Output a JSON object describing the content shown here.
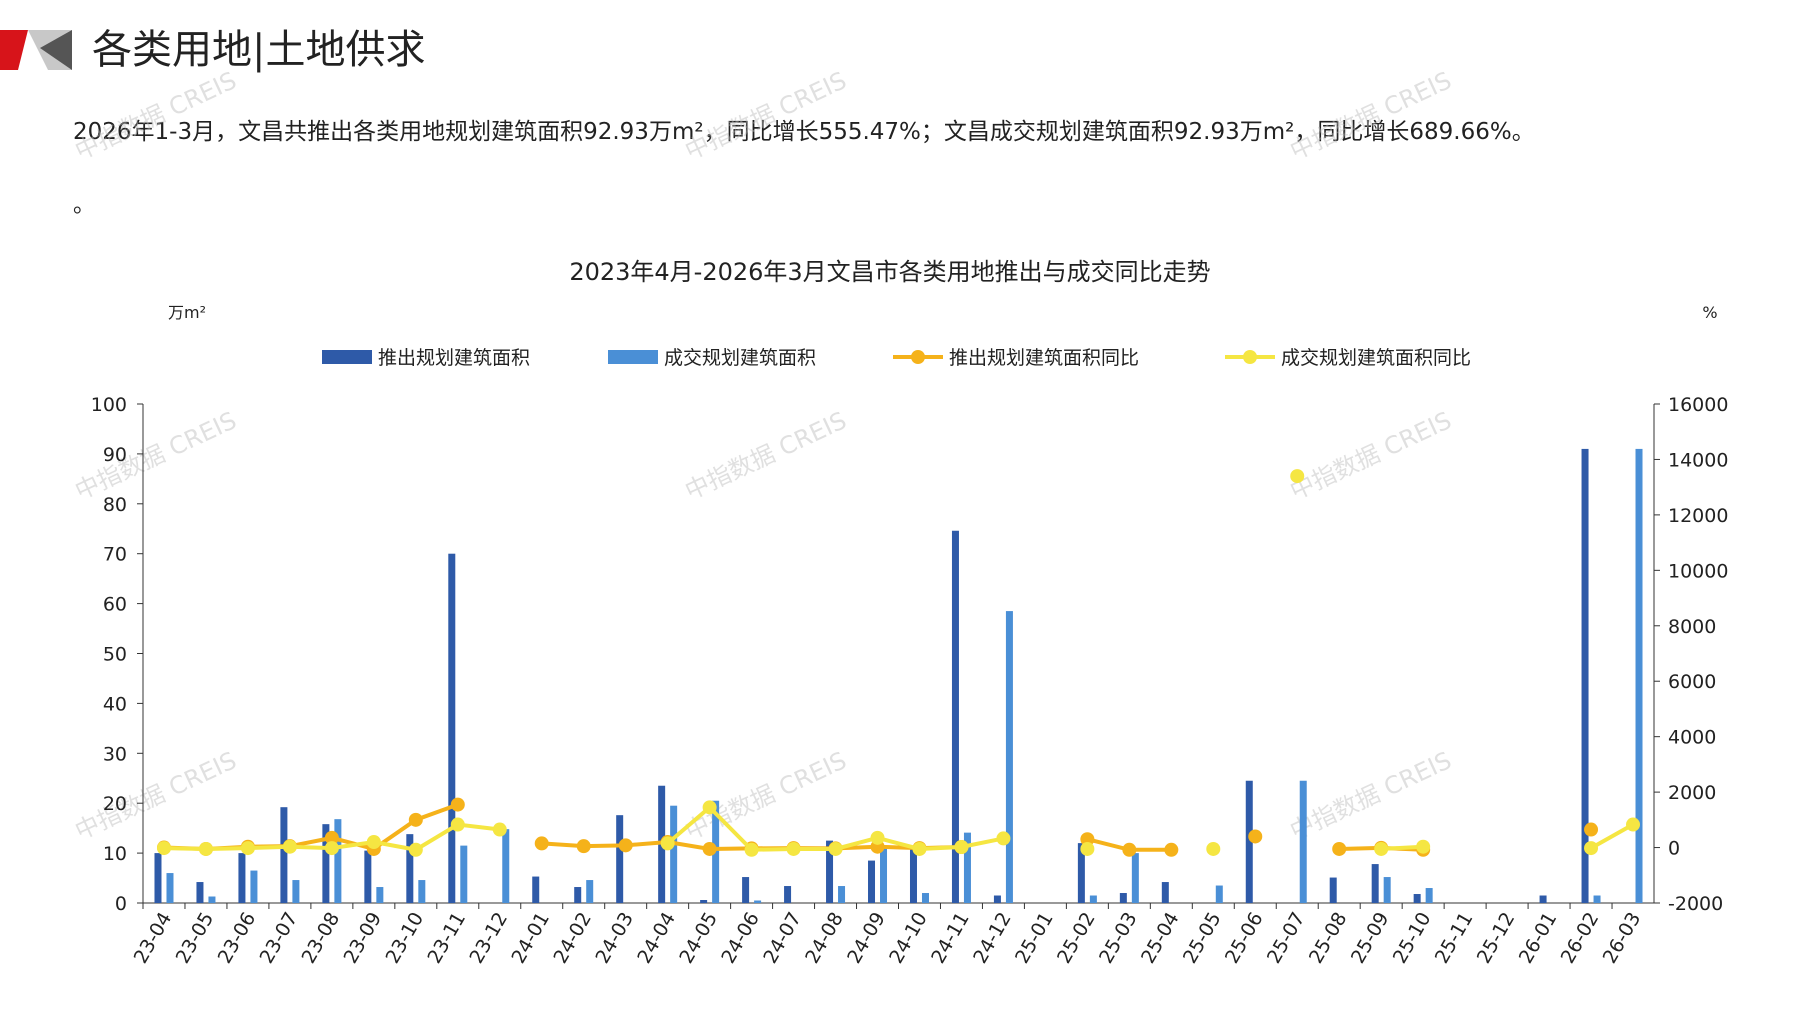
{
  "header": {
    "title": "各类用地|土地供求",
    "paragraph": "2026年1-3月，文昌共推出各类用地规划建筑面积92.93万m²，同比增长555.47%；文昌成交规划建筑面积92.93万m²，同比增长689.66%。",
    "note": "。"
  },
  "watermark": "中指数据 CREIS",
  "chart_data": {
    "type": "bar",
    "title": "2023年4月-2026年3月文昌市各类用地推出与成交同比走势",
    "y_label": "万m²",
    "y2_label": "%",
    "categories": [
      "23-04",
      "23-05",
      "23-06",
      "23-07",
      "23-08",
      "23-09",
      "23-10",
      "23-11",
      "23-12",
      "24-01",
      "24-02",
      "24-03",
      "24-04",
      "24-05",
      "24-06",
      "24-07",
      "24-08",
      "24-09",
      "24-10",
      "24-11",
      "24-12",
      "25-01",
      "25-02",
      "25-03",
      "25-04",
      "25-05",
      "25-06",
      "25-07",
      "25-08",
      "25-09",
      "25-10",
      "25-11",
      "25-12",
      "26-01",
      "26-02",
      "26-03"
    ],
    "series": [
      {
        "name": "推出规划建筑面积",
        "type": "bar",
        "color": "#2e5aa8",
        "values": [
          10,
          4.2,
          10,
          19.2,
          15.8,
          10.5,
          13.8,
          70,
          null,
          5.3,
          3.2,
          17.6,
          23.5,
          0.6,
          5.2,
          3.4,
          12.5,
          8.5,
          11,
          74.6,
          1.5,
          null,
          12,
          2,
          4.2,
          null,
          24.5,
          null,
          5.1,
          7.8,
          1.8,
          null,
          null,
          1.5,
          91,
          null
        ]
      },
      {
        "name": "成交规划建筑面积",
        "type": "bar",
        "color": "#4a8fd6",
        "values": [
          6,
          1.3,
          6.5,
          4.6,
          16.8,
          3.2,
          4.6,
          11.5,
          14.8,
          null,
          4.6,
          null,
          19.5,
          20.5,
          0.5,
          null,
          3.4,
          11.5,
          2,
          14.1,
          58.5,
          null,
          1.5,
          10,
          null,
          3.5,
          null,
          24.5,
          null,
          5.2,
          3,
          null,
          null,
          null,
          1.5,
          91
        ]
      },
      {
        "name": "推出规划建筑面积同比",
        "type": "line",
        "axis": "y2",
        "color": "#f5b21a",
        "values": [
          0,
          -50,
          30,
          50,
          350,
          -50,
          1000,
          1550,
          null,
          150,
          50,
          80,
          200,
          -50,
          -30,
          -20,
          -30,
          30,
          -20,
          20,
          null,
          null,
          300,
          -80,
          -80,
          null,
          400,
          null,
          -50,
          -10,
          -80,
          null,
          null,
          null,
          650,
          null
        ]
      },
      {
        "name": "成交规划建筑面积同比",
        "type": "line",
        "axis": "y2",
        "color": "#f5e642",
        "values": [
          -20,
          -50,
          -20,
          30,
          -20,
          200,
          -80,
          830,
          650,
          null,
          null,
          null,
          150,
          1450,
          -80,
          -50,
          -50,
          350,
          -50,
          20,
          330,
          null,
          -50,
          null,
          null,
          -50,
          null,
          13400,
          null,
          -50,
          30,
          null,
          null,
          null,
          -20,
          830
        ]
      }
    ],
    "ylim": [
      0,
      100
    ],
    "yticks": [
      0,
      10,
      20,
      30,
      40,
      50,
      60,
      70,
      80,
      90,
      100
    ],
    "y2lim": [
      -2000,
      16000
    ],
    "y2ticks": [
      -2000,
      0,
      2000,
      4000,
      6000,
      8000,
      10000,
      12000,
      14000,
      16000
    ]
  }
}
